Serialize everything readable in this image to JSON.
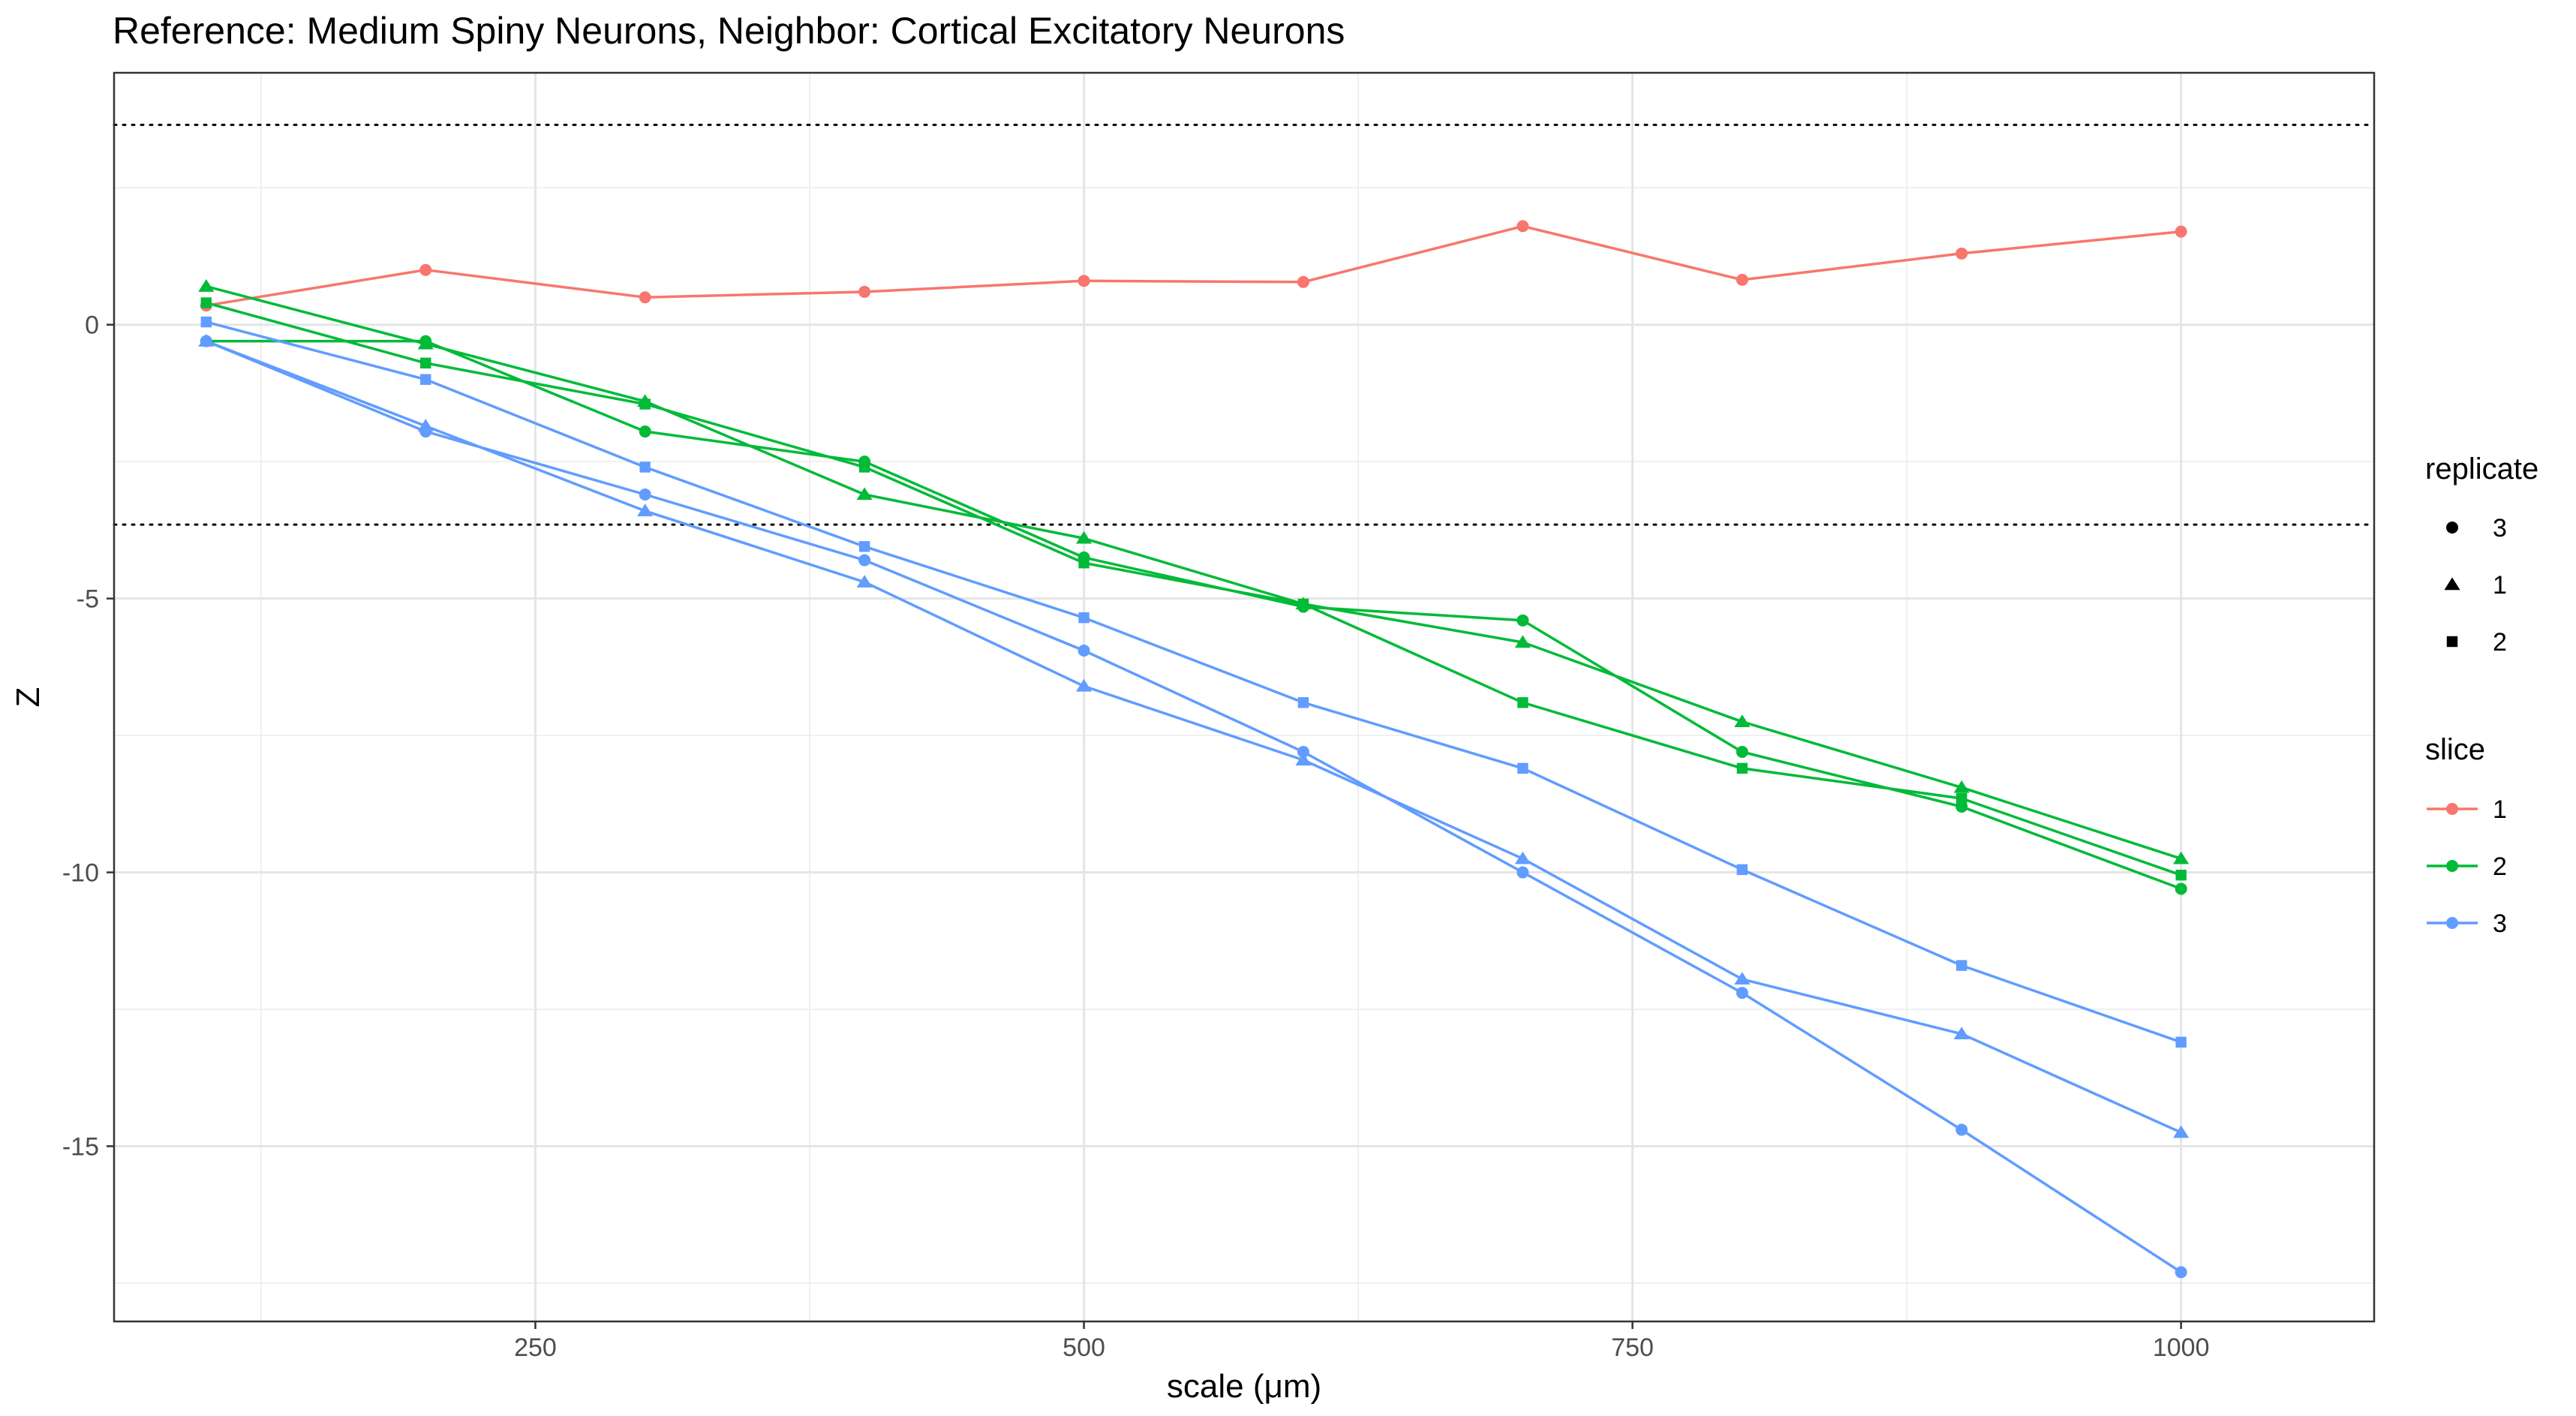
{
  "chart_data": {
    "type": "line",
    "title": "Reference: Medium Spiny Neurons, Neighbor: Cortical Excitatory Neurons",
    "xlabel": "scale (μm)",
    "ylabel": "Z",
    "xlim": [
      58,
      1088
    ],
    "ylim": [
      -18.2,
      4.6
    ],
    "x_ticks": [
      250,
      500,
      750,
      1000
    ],
    "y_ticks": [
      0,
      -5,
      -10,
      -15
    ],
    "x_tick_labels": [
      "250",
      "500",
      "750",
      "1000"
    ],
    "y_tick_labels": [
      "0",
      "-5",
      "-10",
      "-15"
    ],
    "x_minor_ticks": [
      125,
      375,
      625,
      875
    ],
    "y_minor_ticks": [
      2.5,
      -2.5,
      -7.5,
      -12.5,
      -17.5
    ],
    "grid": true,
    "reference_lines": [
      3.65,
      -3.65
    ],
    "legend_position": "right",
    "legend": {
      "replicate": {
        "title": "replicate",
        "entries": [
          {
            "label": "3",
            "shape": "circle"
          },
          {
            "label": "1",
            "shape": "triangle"
          },
          {
            "label": "2",
            "shape": "square"
          }
        ]
      },
      "slice": {
        "title": "slice",
        "entries": [
          {
            "label": "1",
            "color": "#F8766D"
          },
          {
            "label": "2",
            "color": "#00BA38"
          },
          {
            "label": "3",
            "color": "#619CFF"
          }
        ]
      }
    },
    "x": [
      100,
      200,
      300,
      400,
      500,
      600,
      700,
      800,
      900,
      1000
    ],
    "series": [
      {
        "slice": "1",
        "replicate": "3",
        "color": "#F8766D",
        "shape": "circle",
        "values": [
          0.35,
          1.0,
          0.5,
          0.6,
          0.8,
          0.78,
          1.8,
          0.82,
          1.3,
          1.7
        ]
      },
      {
        "slice": "2",
        "replicate": "3",
        "color": "#00BA38",
        "shape": "circle",
        "values": [
          -0.3,
          -0.3,
          -1.95,
          -2.5,
          -4.25,
          -5.15,
          -5.4,
          -7.8,
          -8.8,
          -10.3
        ]
      },
      {
        "slice": "2",
        "replicate": "1",
        "color": "#00BA38",
        "shape": "triangle",
        "values": [
          0.7,
          -0.35,
          -1.4,
          -3.1,
          -3.9,
          -5.1,
          -5.8,
          -7.25,
          -8.45,
          -9.75
        ]
      },
      {
        "slice": "2",
        "replicate": "2",
        "color": "#00BA38",
        "shape": "square",
        "values": [
          0.4,
          -0.7,
          -1.45,
          -2.6,
          -4.35,
          -5.1,
          -6.9,
          -8.1,
          -8.65,
          -10.05
        ]
      },
      {
        "slice": "3",
        "replicate": "3",
        "color": "#619CFF",
        "shape": "circle",
        "values": [
          -0.3,
          -1.95,
          -3.1,
          -4.3,
          -5.95,
          -7.8,
          -10.0,
          -12.2,
          -14.7,
          -17.3
        ]
      },
      {
        "slice": "3",
        "replicate": "1",
        "color": "#619CFF",
        "shape": "triangle",
        "values": [
          -0.3,
          -1.85,
          -3.4,
          -4.7,
          -6.6,
          -7.95,
          -9.75,
          -11.95,
          -12.95,
          -14.75
        ]
      },
      {
        "slice": "3",
        "replicate": "2",
        "color": "#619CFF",
        "shape": "square",
        "values": [
          0.05,
          -1.0,
          -2.6,
          -4.05,
          -5.35,
          -6.9,
          -8.1,
          -9.95,
          -11.7,
          -13.1
        ]
      }
    ]
  }
}
